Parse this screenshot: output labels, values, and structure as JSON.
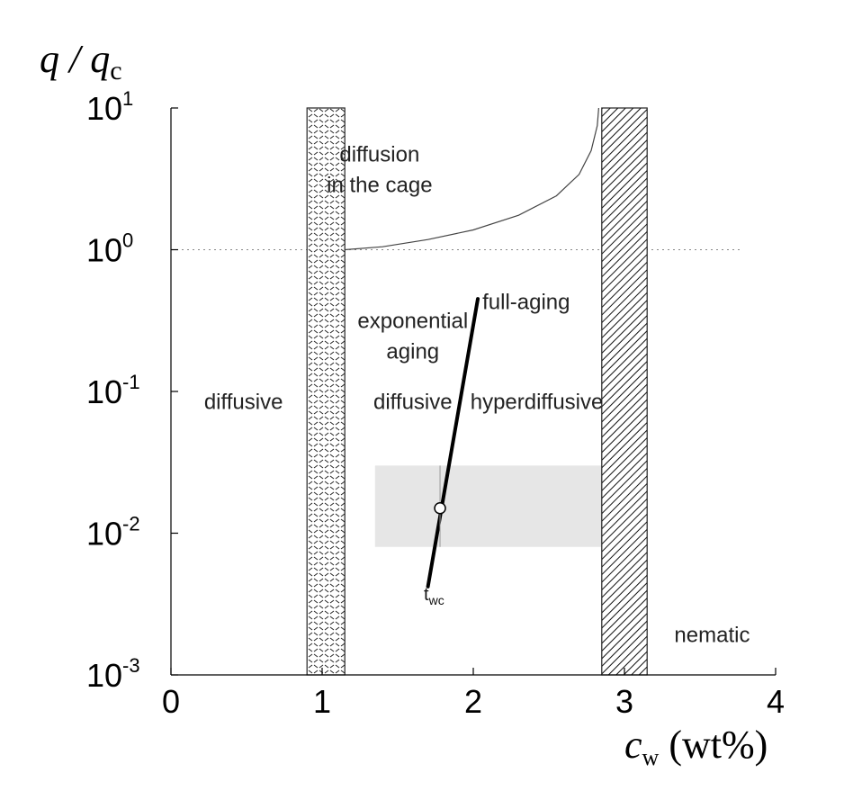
{
  "chart_data": {
    "type": "phase-diagram",
    "x_axis": {
      "label_main": "c",
      "label_sub": "w",
      "label_unit": "(wt%)",
      "scale": "linear",
      "range": [
        0,
        4
      ],
      "ticks": [
        0,
        1,
        2,
        3,
        4
      ],
      "tick_labels": [
        "0",
        "1",
        "2",
        "3",
        "4"
      ]
    },
    "y_axis": {
      "label_main": "q / q",
      "label_sub": "c",
      "scale": "log",
      "range": [
        0.001,
        10
      ],
      "ticks": [
        0.001,
        0.01,
        0.1,
        1,
        10
      ],
      "tick_labels": [
        {
          "base": "10",
          "exp": "-3"
        },
        {
          "base": "10",
          "exp": "-2"
        },
        {
          "base": "10",
          "exp": "-1"
        },
        {
          "base": "10",
          "exp": "0"
        },
        {
          "base": "10",
          "exp": "1"
        }
      ]
    },
    "reference_line": {
      "y": 1,
      "style": "dotted"
    },
    "bands": [
      {
        "x0": 0.9,
        "x1": 1.15,
        "pattern": "crosshatch"
      },
      {
        "x0": 2.85,
        "x1": 3.15,
        "pattern": "diagonal-hatch"
      }
    ],
    "cage_boundary": {
      "points": [
        [
          1.15,
          1.0
        ],
        [
          1.4,
          1.05
        ],
        [
          1.7,
          1.18
        ],
        [
          2.0,
          1.38
        ],
        [
          2.3,
          1.75
        ],
        [
          2.55,
          2.4
        ],
        [
          2.7,
          3.4
        ],
        [
          2.78,
          5.0
        ],
        [
          2.82,
          7.5
        ],
        [
          2.83,
          10.0
        ]
      ]
    },
    "aging_line": {
      "x0": 1.7,
      "y0": 0.0042,
      "x1": 2.03,
      "y1": 0.45
    },
    "marker": {
      "x": 1.78,
      "y": 0.015,
      "label_main": "t",
      "label_sub": "wc"
    },
    "shaded_rect": {
      "x0": 1.35,
      "x1": 2.85,
      "y0": 0.008,
      "y1": 0.03
    },
    "region_labels": [
      {
        "lines": [
          "diffusion",
          "in the cage"
        ],
        "x": 1.38,
        "y": 4.2
      },
      {
        "lines": [
          "exponential",
          "aging"
        ],
        "x": 1.6,
        "y": 0.28
      },
      {
        "lines": [
          "full-aging"
        ],
        "x": 2.35,
        "y": 0.38
      },
      {
        "lines": [
          "diffusive"
        ],
        "x": 0.48,
        "y": 0.075
      },
      {
        "lines": [
          "diffusive"
        ],
        "x": 1.6,
        "y": 0.075
      },
      {
        "lines": [
          "hyperdiffusive"
        ],
        "x": 2.42,
        "y": 0.075
      },
      {
        "lines": [
          "nematic"
        ],
        "x": 3.58,
        "y": 0.0017
      }
    ]
  }
}
